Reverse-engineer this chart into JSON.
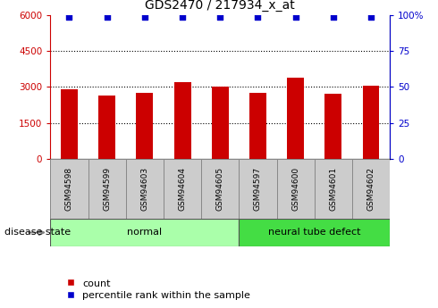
{
  "title": "GDS2470 / 217934_x_at",
  "samples": [
    "GSM94598",
    "GSM94599",
    "GSM94603",
    "GSM94604",
    "GSM94605",
    "GSM94597",
    "GSM94600",
    "GSM94601",
    "GSM94602"
  ],
  "counts": [
    2900,
    2650,
    2750,
    3200,
    3000,
    2750,
    3400,
    2700,
    3050
  ],
  "percentile_ranks": [
    99,
    99,
    99,
    99,
    99,
    99,
    99,
    99,
    99
  ],
  "groups": [
    {
      "label": "normal",
      "start": 0,
      "end": 5,
      "color": "#AAFFAA"
    },
    {
      "label": "neural tube defect",
      "start": 5,
      "end": 9,
      "color": "#44DD44"
    }
  ],
  "bar_color": "#CC0000",
  "dot_color": "#0000CC",
  "ylim_left": [
    0,
    6000
  ],
  "ylim_right": [
    0,
    100
  ],
  "yticks_left": [
    0,
    1500,
    3000,
    4500,
    6000
  ],
  "yticks_right": [
    0,
    25,
    50,
    75,
    100
  ],
  "ytick_labels_left": [
    "0",
    "1500",
    "3000",
    "4500",
    "6000"
  ],
  "ytick_labels_right": [
    "0",
    "25",
    "50",
    "75",
    "100%"
  ],
  "grid_values": [
    1500,
    3000,
    4500
  ],
  "left_axis_color": "#CC0000",
  "right_axis_color": "#0000CC",
  "disease_state_label": "disease state",
  "legend_count_label": "count",
  "legend_pct_label": "percentile rank within the sample",
  "background_color": "#FFFFFF",
  "sample_box_color": "#CCCCCC",
  "sample_box_edge": "#888888"
}
